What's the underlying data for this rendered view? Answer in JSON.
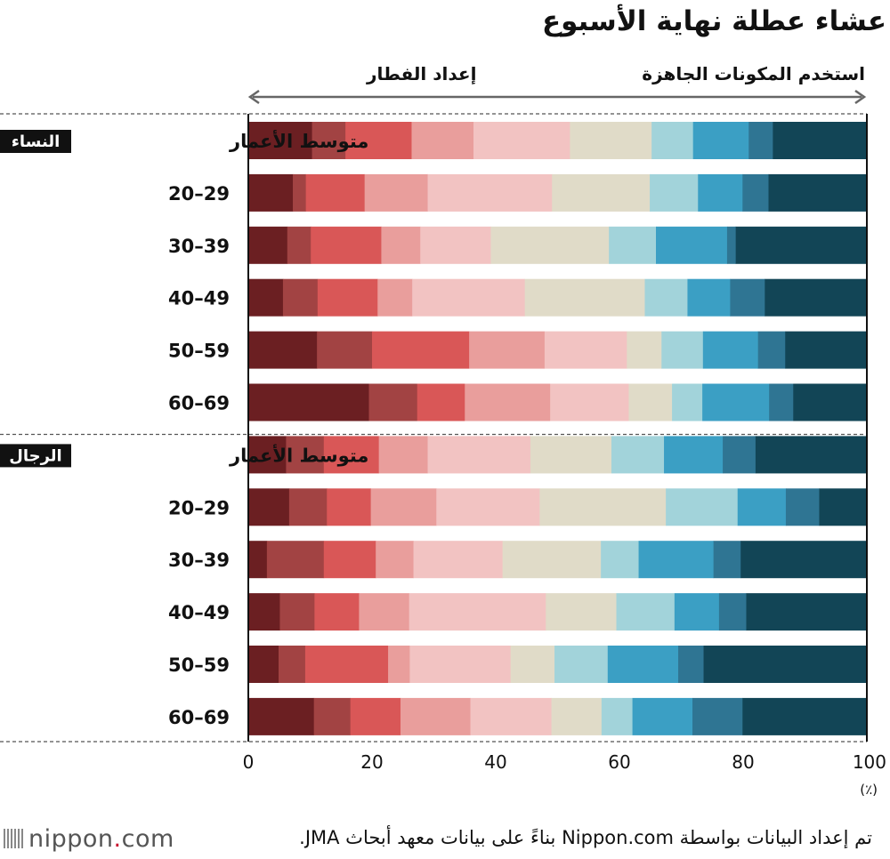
{
  "title": "عشاء عطلة نهاية الأسبوع",
  "source": "تم إعداد البيانات بواسطة Nippon.com بناءً على بيانات معهد أبحاث JMA.",
  "logo": {
    "text": "nippon",
    "dot": ".",
    "suffix": "com"
  },
  "chart_data": {
    "type": "bar",
    "orientation": "horizontal",
    "stacked": true,
    "arrow_left_label": "إعداد الفطار",
    "arrow_right_label": "استخدم المكونات الجاهزة",
    "xlim": [
      0,
      100
    ],
    "x_ticks": [
      "0",
      "20",
      "40",
      "60",
      "80",
      "100"
    ],
    "unit": "(٪)",
    "colors": [
      "#6b1f22",
      "#a24343",
      "#d95757",
      "#e99e9c",
      "#f2c3c2",
      "#e0dbc8",
      "#a2d3da",
      "#3b9fc4",
      "#2f7593",
      "#124556"
    ],
    "groups": [
      {
        "badge": "النساء",
        "rows": [
          {
            "label": "متوسط الأعمار",
            "values": [
              10.3,
              5.4,
              10.7,
              10.0,
              15.6,
              13.2,
              6.7,
              9.0,
              3.9,
              15.2
            ]
          },
          {
            "label": "20–29",
            "values": [
              7.2,
              2.1,
              9.5,
              10.2,
              20.1,
              15.8,
              7.8,
              7.2,
              4.2,
              15.9
            ]
          },
          {
            "label": "30–39",
            "values": [
              6.3,
              3.8,
              11.4,
              6.3,
              11.4,
              19.1,
              7.6,
              11.5,
              1.4,
              21.2
            ]
          },
          {
            "label": "40–49",
            "values": [
              5.6,
              5.6,
              9.7,
              5.6,
              18.2,
              19.4,
              6.9,
              6.9,
              5.6,
              16.5
            ]
          },
          {
            "label": "50–59",
            "values": [
              11.1,
              8.9,
              15.7,
              12.2,
              13.3,
              5.6,
              6.7,
              8.9,
              4.4,
              13.2
            ]
          },
          {
            "label": "60–69",
            "values": [
              19.5,
              7.8,
              7.7,
              13.8,
              12.7,
              7.0,
              4.9,
              10.8,
              3.9,
              11.9
            ]
          }
        ]
      },
      {
        "badge": "الرجال",
        "rows": [
          {
            "label": "متوسط الأعمار",
            "values": [
              6.1,
              6.1,
              8.9,
              7.9,
              16.6,
              13.1,
              8.5,
              9.5,
              5.3,
              18.0
            ]
          },
          {
            "label": "20–29",
            "values": [
              6.6,
              6.1,
              7.1,
              10.6,
              16.7,
              20.4,
              11.6,
              7.8,
              5.4,
              7.7
            ]
          },
          {
            "label": "30–39",
            "values": [
              3.0,
              9.2,
              8.4,
              6.1,
              14.4,
              15.9,
              6.1,
              12.1,
              4.4,
              20.4
            ]
          },
          {
            "label": "40–49",
            "values": [
              5.1,
              5.6,
              7.2,
              8.1,
              22.1,
              11.4,
              9.4,
              7.2,
              4.4,
              19.5
            ]
          },
          {
            "label": "50–59",
            "values": [
              4.9,
              4.3,
              13.4,
              3.5,
              16.3,
              7.1,
              8.6,
              11.4,
              4.1,
              26.4
            ]
          },
          {
            "label": "60–69",
            "values": [
              10.6,
              5.9,
              8.1,
              11.3,
              13.1,
              8.1,
              5.0,
              9.7,
              8.1,
              20.1
            ]
          }
        ]
      }
    ]
  }
}
